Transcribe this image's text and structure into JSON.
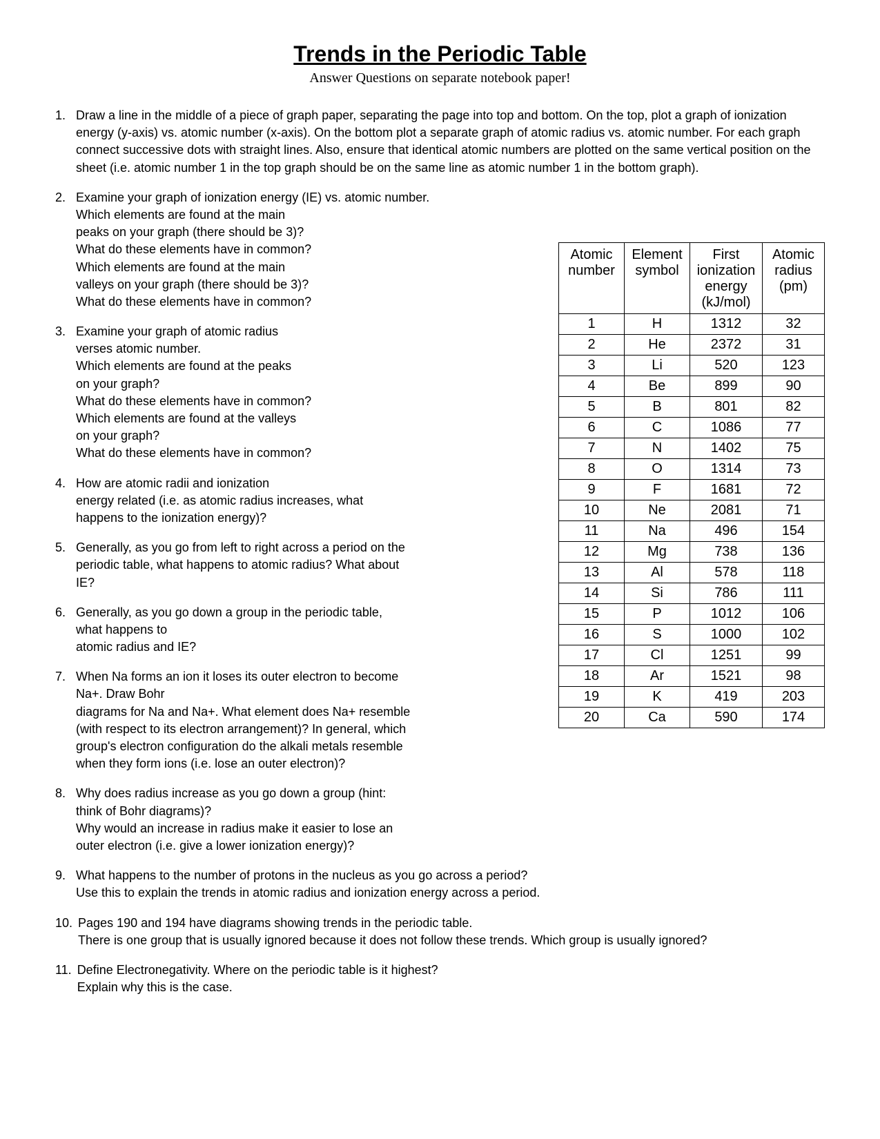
{
  "header": {
    "title": "Trends in the Periodic Table",
    "subtitle": "Answer Questions on separate notebook paper!"
  },
  "questions": [
    {
      "num": "1.",
      "wrap": "full",
      "lines": [
        "Draw a line in the middle of a piece of graph paper, separating the page into top and bottom. On the top, plot a graph of ionization energy (y-axis) vs. atomic number (x-axis). On the bottom plot a separate graph of atomic radius vs. atomic number. For each graph connect successive dots with straight lines. Also, ensure that identical atomic numbers are plotted on the same vertical position on the sheet (i.e. atomic number 1 in the top graph should be on the same line as atomic number 1 in the bottom graph)."
      ]
    },
    {
      "num": "2.",
      "wrap": "wrapped",
      "lines": [
        "Examine your graph of ionization energy (IE) vs. atomic number.",
        "Which elements are found at the main",
        "peaks on your graph (there should be 3)?",
        "What do these elements have in common?",
        "Which elements are found at the main",
        "valleys on your graph (there should be 3)?",
        "What do these elements have in common?"
      ]
    },
    {
      "num": "3.",
      "wrap": "wrapped",
      "lines": [
        "Examine your graph of atomic radius",
        "verses atomic number.",
        "Which elements are found at the peaks",
        "on your graph?",
        "What do these elements have in common?",
        "Which elements are found at the valleys",
        "on your graph?",
        "What do these elements have in common?"
      ]
    },
    {
      "num": "4.",
      "wrap": "wrapped",
      "lines": [
        "How are atomic radii and ionization",
        "energy related (i.e. as atomic radius increases, what",
        "happens to the ionization energy)?"
      ]
    },
    {
      "num": "5.",
      "wrap": "wrapped",
      "lines": [
        "Generally, as you go from left to right across a period on the",
        "periodic table, what happens to atomic radius? What about",
        "IE?"
      ]
    },
    {
      "num": "6.",
      "wrap": "wrapped",
      "lines": [
        "Generally, as you go down a group in the periodic table,",
        "what happens to",
        "atomic   radius and IE?"
      ]
    },
    {
      "num": "7.",
      "wrap": "wrapped",
      "lines": [
        "When Na forms an ion it loses its outer electron to become",
        "Na+. Draw Bohr",
        "diagrams for Na and Na+. What element does Na+ resemble",
        "(with respect to its electron arrangement)? In general, which",
        "group's electron configuration do the alkali metals resemble",
        "when they form ions (i.e. lose an outer electron)?"
      ]
    },
    {
      "num": "8.",
      "wrap": "wrapped",
      "lines": [
        "Why does radius increase as you go down a group (hint:",
        "think of Bohr diagrams)?",
        "Why  would an increase in radius make it easier to lose an",
        "outer electron (i.e. give a lower ionization energy)?"
      ]
    },
    {
      "num": "9.",
      "wrap": "full",
      "lines": [
        "What happens to the number of protons in the nucleus as you go across a period?",
        "Use this to explain the trends in atomic radius and ionization energy across a period."
      ]
    },
    {
      "num": "10.",
      "wrap": "full",
      "lines": [
        "Pages 190 and 194 have diagrams showing trends in the periodic table.",
        "There is one group that is usually ignored because it does not follow these trends. Which group is usually ignored?"
      ]
    },
    {
      "num": "11.",
      "wrap": "full",
      "lines": [
        "Define Electronegativity. Where on the periodic table is it highest?",
        "Explain why this is the case."
      ]
    }
  ],
  "table": {
    "headers": [
      "Atomic number",
      "Element symbol",
      "First ionization energy (kJ/mol)",
      "Atomic radius (pm)"
    ],
    "rows": [
      [
        "1",
        "H",
        "1312",
        "32"
      ],
      [
        "2",
        "He",
        "2372",
        "31"
      ],
      [
        "3",
        "Li",
        "520",
        "123"
      ],
      [
        "4",
        "Be",
        "899",
        "90"
      ],
      [
        "5",
        "B",
        "801",
        "82"
      ],
      [
        "6",
        "C",
        "1086",
        "77"
      ],
      [
        "7",
        "N",
        "1402",
        "75"
      ],
      [
        "8",
        "O",
        "1314",
        "73"
      ],
      [
        "9",
        "F",
        "1681",
        "72"
      ],
      [
        "10",
        "Ne",
        "2081",
        "71"
      ],
      [
        "11",
        "Na",
        "496",
        "154"
      ],
      [
        "12",
        "Mg",
        "738",
        "136"
      ],
      [
        "13",
        "Al",
        "578",
        "118"
      ],
      [
        "14",
        "Si",
        "786",
        "111"
      ],
      [
        "15",
        "P",
        "1012",
        "106"
      ],
      [
        "16",
        "S",
        "1000",
        "102"
      ],
      [
        "17",
        "Cl",
        "1251",
        "99"
      ],
      [
        "18",
        "Ar",
        "1521",
        "98"
      ],
      [
        "19",
        "K",
        "419",
        "203"
      ],
      [
        "20",
        "Ca",
        "590",
        "174"
      ]
    ]
  }
}
